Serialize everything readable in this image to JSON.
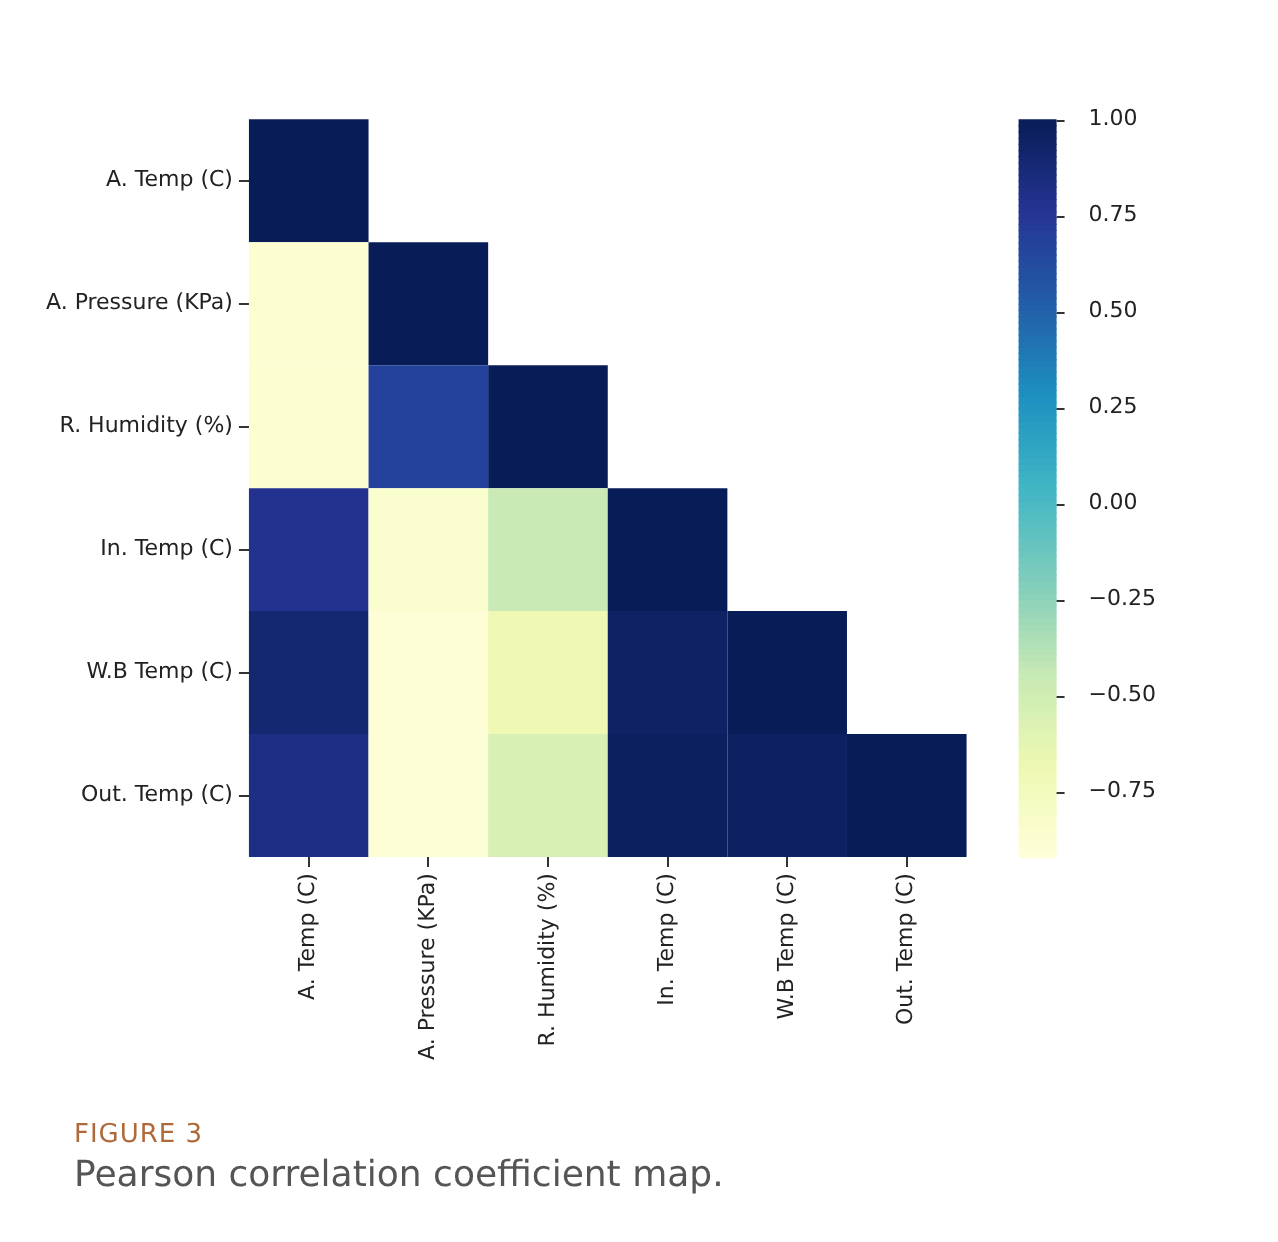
{
  "chart_data": {
    "type": "heatmap",
    "categories": [
      "A. Temp (C)",
      "A. Pressure (KPa)",
      "R. Humidity (%)",
      "In. Temp (C)",
      "W.B Temp (C)",
      "Out. Temp (C)"
    ],
    "y_categories": [
      "A. Temp (C)",
      "A. Pressure (KPa)",
      "R. Humidity (%)",
      "In. Temp (C)",
      "W.B Temp (C)",
      "Out. Temp (C)"
    ],
    "cells": [
      [
        1,
        null,
        null,
        null,
        null,
        null
      ],
      [
        -0.88,
        1,
        null,
        null,
        null,
        null
      ],
      [
        -0.87,
        0.68,
        1,
        null,
        null,
        null
      ],
      [
        0.78,
        -0.85,
        -0.45,
        1,
        null,
        null
      ],
      [
        0.9,
        -0.9,
        -0.7,
        0.95,
        1,
        null
      ],
      [
        0.82,
        -0.9,
        -0.55,
        0.97,
        0.96,
        1
      ]
    ],
    "clim": [
      -0.92,
      1
    ],
    "cticks": [
      {
        "value": -0.75,
        "label": "−0.75"
      },
      {
        "value": -0.5,
        "label": "−0.50"
      },
      {
        "value": -0.25,
        "label": "−0.25"
      },
      {
        "value": 0,
        "label": "0.00"
      },
      {
        "value": 0.25,
        "label": "0.25"
      },
      {
        "value": 0.5,
        "label": "0.50"
      },
      {
        "value": 0.75,
        "label": "0.75"
      },
      {
        "value": 1,
        "label": "1.00"
      }
    ],
    "annotations": [
      "FIGURE 3",
      "Pearson correlation coefficient map."
    ]
  }
}
